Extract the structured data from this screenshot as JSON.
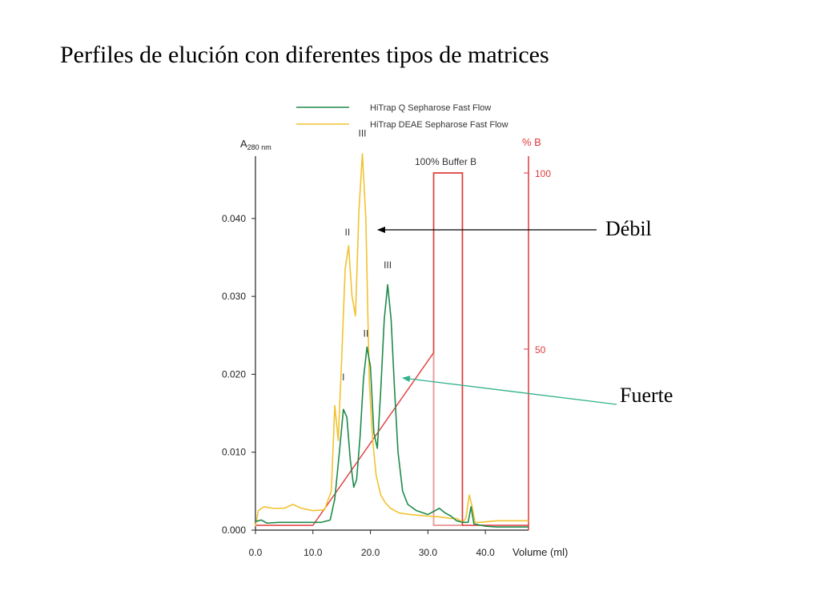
{
  "slide": {
    "title": "Perfiles de elución con diferentes tipos de matrices"
  },
  "annotations": {
    "weak": "Débil",
    "strong": "Fuerte"
  },
  "colors": {
    "q_sepharose": "#1e8a4a",
    "deae_sepharose": "#f2c230",
    "gradient": "#e03a3a",
    "buffer_box": "#eaa0a0",
    "strong_arrow": "#2eb08a"
  },
  "chart_data": {
    "type": "line",
    "xlabel": "Volume (ml)",
    "ylabel": "A280 nm",
    "ylabel_main": "A",
    "ylabel_sub": "280 nm",
    "y2label": "% B",
    "xlim": [
      0,
      47.5
    ],
    "ylim": [
      0,
      0.048
    ],
    "y2lim": [
      0,
      100
    ],
    "x_ticks": [
      0,
      10,
      20,
      30,
      40
    ],
    "x_tick_labels": [
      "0.0",
      "10.0",
      "20.0",
      "30.0",
      "40.0"
    ],
    "y_ticks": [
      0,
      0.01,
      0.02,
      0.03,
      0.04
    ],
    "y_tick_labels": [
      "0.000",
      "0.010",
      "0.020",
      "0.030",
      "0.040"
    ],
    "y2_ticks": [
      50,
      100
    ],
    "y2_tick_labels": [
      "50",
      "100"
    ],
    "legend_position": "top",
    "buffer_box_label": "100% Buffer B",
    "series": [
      {
        "name": "HiTrap Q Sepharose Fast Flow",
        "color": "#1e8a4a",
        "x": [
          0,
          1,
          2,
          4,
          8,
          10,
          11.5,
          13,
          13.8,
          14.6,
          15.3,
          15.9,
          16.5,
          17.1,
          17.6,
          18.2,
          18.8,
          19.4,
          20.0,
          20.6,
          21.2,
          21.8,
          22.4,
          23.0,
          23.6,
          24.2,
          24.8,
          25.6,
          26.5,
          28,
          30,
          32,
          33,
          34,
          35,
          36,
          37,
          37.5,
          38,
          40,
          42,
          45,
          47.5
        ],
        "values": [
          0.0011,
          0.0013,
          0.0009,
          0.001,
          0.001,
          0.001,
          0.001,
          0.0013,
          0.004,
          0.01,
          0.0155,
          0.0145,
          0.009,
          0.0055,
          0.0065,
          0.012,
          0.0195,
          0.0235,
          0.021,
          0.0125,
          0.0105,
          0.018,
          0.027,
          0.0315,
          0.027,
          0.018,
          0.01,
          0.005,
          0.0033,
          0.0025,
          0.002,
          0.0028,
          0.0022,
          0.0018,
          0.0012,
          0.001,
          0.001,
          0.003,
          0.0008,
          0.0005,
          0.0004,
          0.0004,
          0.0004
        ]
      },
      {
        "name": "HiTrap DEAE Sepharose Fast Flow",
        "color": "#f2c230",
        "x": [
          0,
          0.5,
          1.5,
          3,
          5,
          6.5,
          8,
          10,
          12,
          13.2,
          13.8,
          14.4,
          15.0,
          15.6,
          16.2,
          16.8,
          17.4,
          18.0,
          18.6,
          19.2,
          19.8,
          20.4,
          21.0,
          21.8,
          22.6,
          23.5,
          25,
          27,
          30,
          32,
          34,
          35,
          36,
          36.6,
          37.2,
          37.7,
          38.2,
          39,
          42,
          45,
          47.5
        ],
        "values": [
          0.0005,
          0.0025,
          0.003,
          0.0028,
          0.0028,
          0.0033,
          0.0028,
          0.0025,
          0.0026,
          0.005,
          0.016,
          0.0115,
          0.022,
          0.0335,
          0.0365,
          0.03,
          0.0275,
          0.041,
          0.0483,
          0.04,
          0.019,
          0.0115,
          0.007,
          0.0045,
          0.0035,
          0.0028,
          0.0022,
          0.002,
          0.0018,
          0.0017,
          0.0015,
          0.0015,
          0.001,
          0.0015,
          0.0045,
          0.003,
          0.001,
          0.001,
          0.0012,
          0.0012,
          0.0012
        ]
      },
      {
        "name": "% B",
        "axis": "right",
        "color": "#e03a3a",
        "x": [
          0,
          10,
          31,
          31,
          36,
          36,
          47.5
        ],
        "values": [
          0,
          0,
          49,
          100,
          100,
          0,
          0
        ]
      }
    ],
    "peak_labels": [
      {
        "text": "III",
        "x": 18.6,
        "y": 0.0505
      },
      {
        "text": "II",
        "x": 16.0,
        "y": 0.0378
      },
      {
        "text": "III",
        "x": 23.0,
        "y": 0.0336
      },
      {
        "text": "II",
        "x": 19.2,
        "y": 0.0248
      },
      {
        "text": "I",
        "x": 15.3,
        "y": 0.0192
      }
    ]
  }
}
